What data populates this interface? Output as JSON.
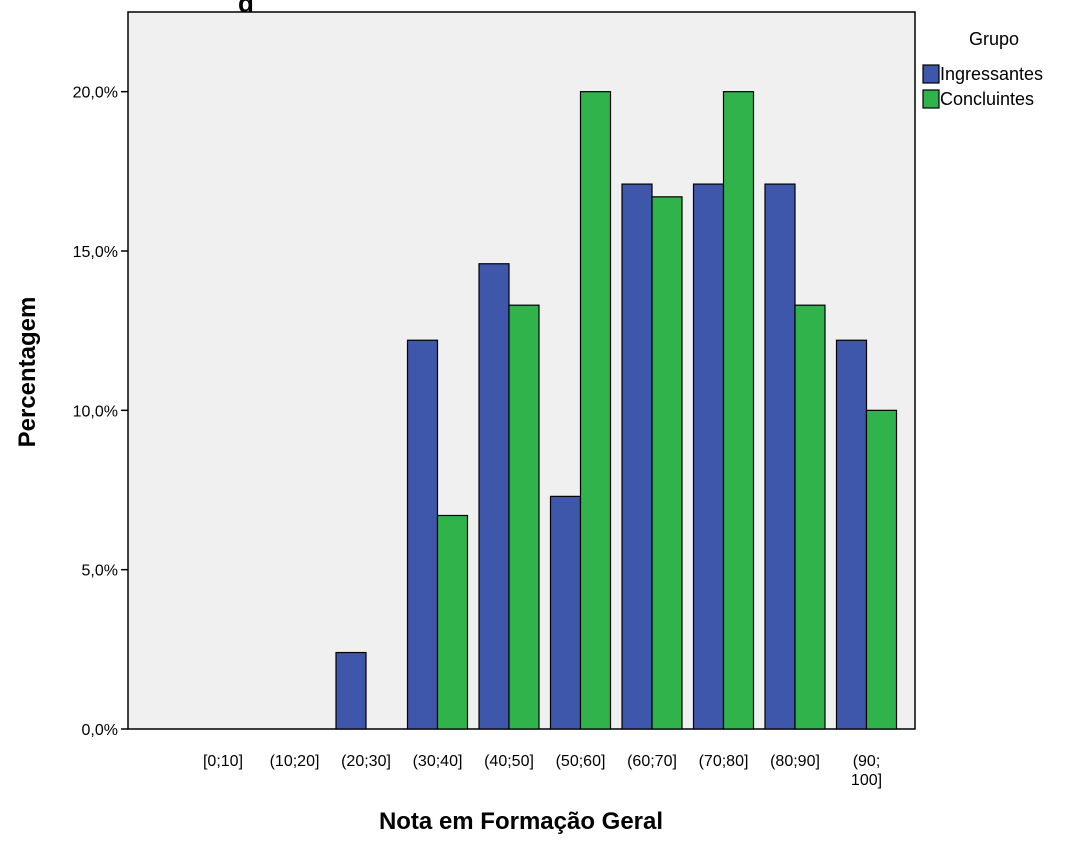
{
  "chart_data": {
    "type": "bar",
    "title": "",
    "title_visible_fragment": "g",
    "xlabel": "Nota em Formação Geral",
    "ylabel": "Percentagem",
    "categories": [
      "[0;10]",
      "(10;20]",
      "(20;30]",
      "(30;40]",
      "(40;50]",
      "(50;60]",
      "(60;70]",
      "(70;80]",
      "(80;90]",
      "(90;\n100]"
    ],
    "series": [
      {
        "name": "Ingressantes",
        "color": "#3f57aa",
        "values": [
          0,
          0,
          2.4,
          12.2,
          14.6,
          7.3,
          17.1,
          17.1,
          17.1,
          12.2
        ]
      },
      {
        "name": "Concluintes",
        "color": "#2fb34a",
        "values": [
          0,
          0,
          0,
          6.7,
          13.3,
          20.0,
          16.7,
          20.0,
          13.3,
          10.0
        ]
      }
    ],
    "ylim": [
      0,
      22.5
    ],
    "yticks": [
      0,
      5,
      10,
      15,
      20
    ],
    "ytick_labels": [
      "0,0%",
      "5,0%",
      "10,0%",
      "15,0%",
      "20,0%"
    ],
    "legend": {
      "title": "Grupo",
      "placement": "right"
    },
    "plot_background": "#f0f0f0",
    "grid": false
  }
}
